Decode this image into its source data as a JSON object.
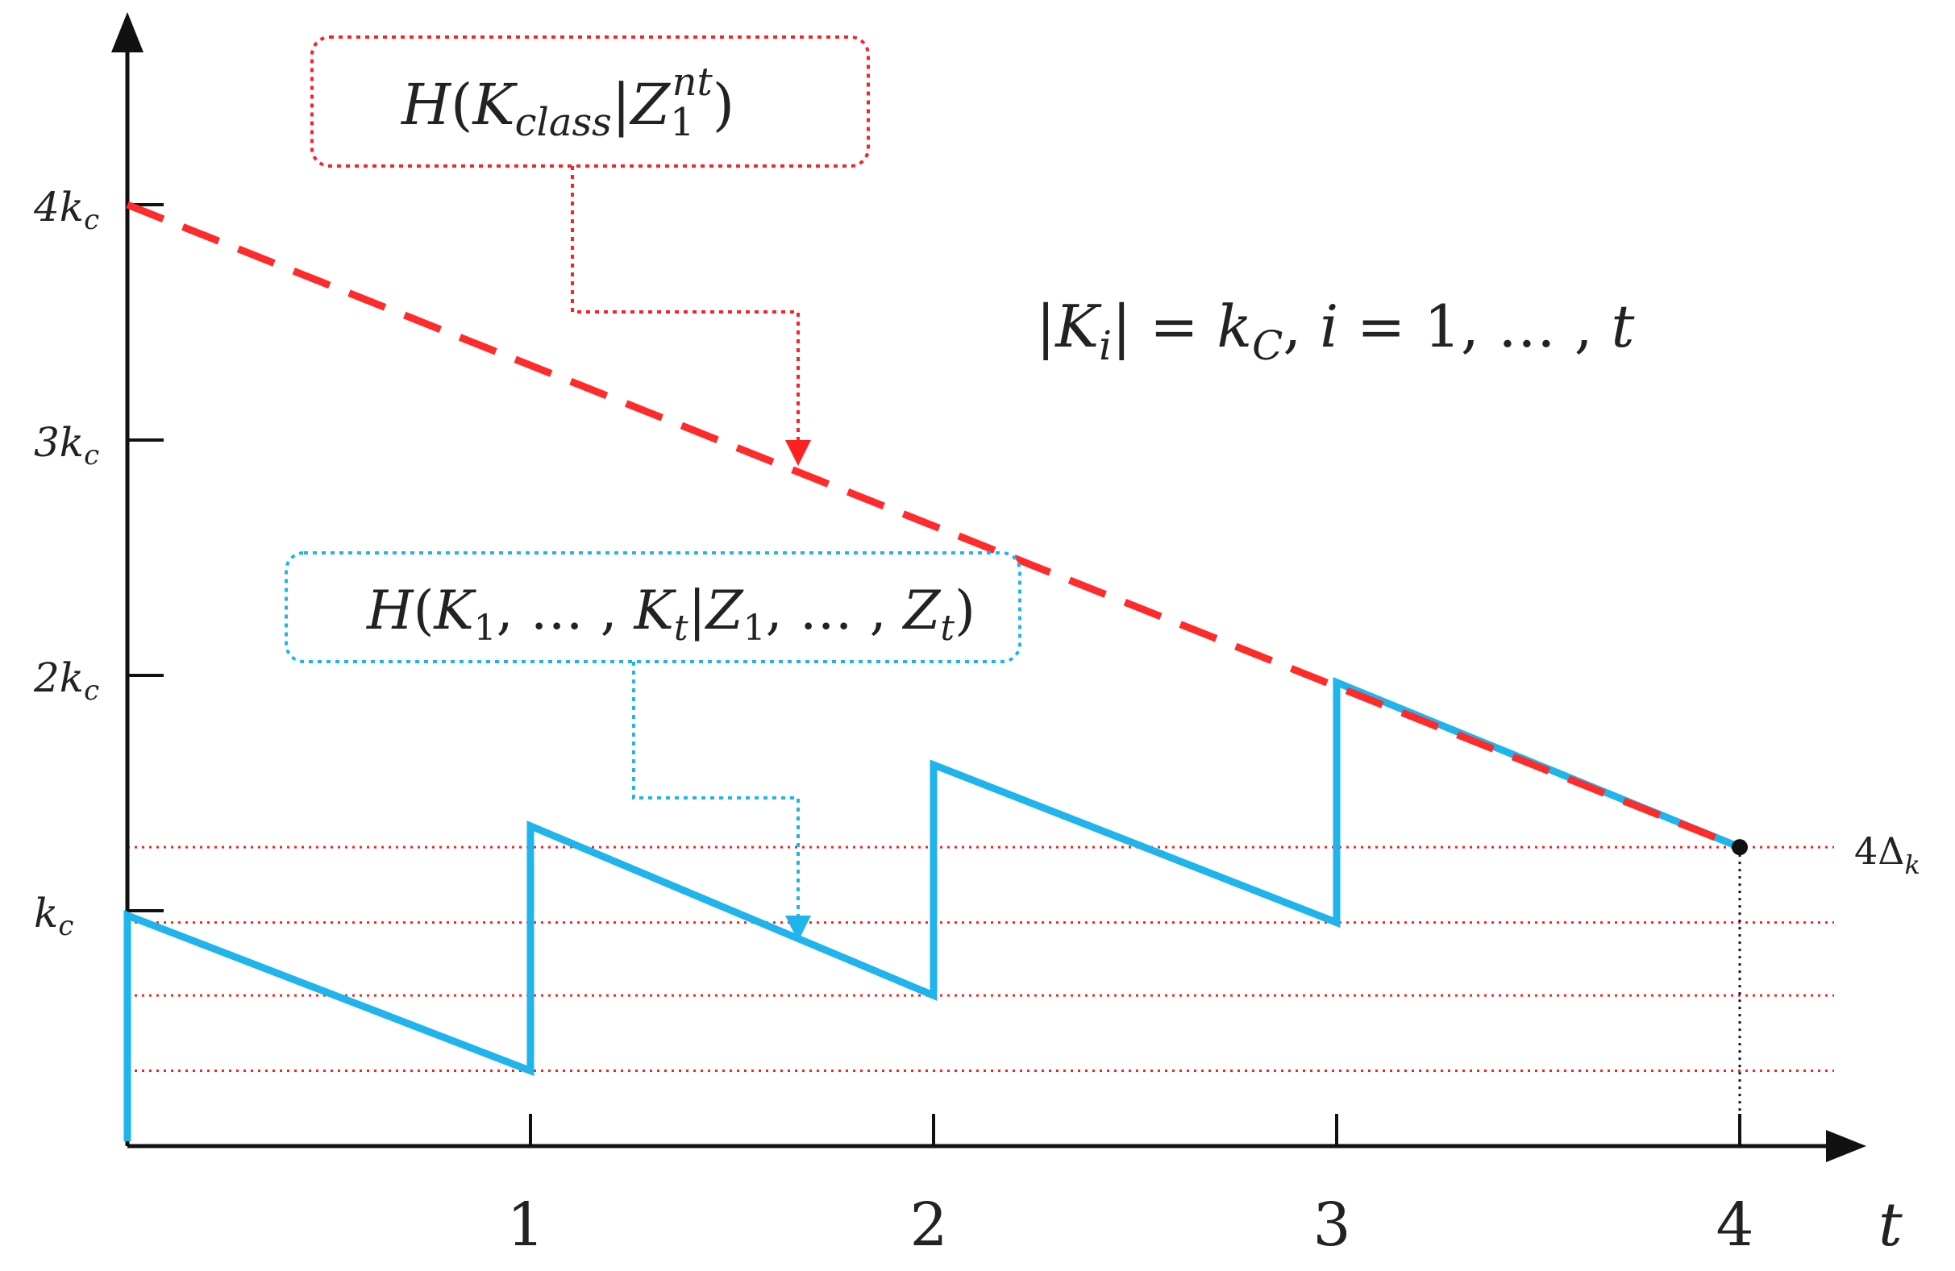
{
  "chart_data": {
    "type": "line",
    "x_ticks": [
      {
        "value": 1,
        "label": "1"
      },
      {
        "value": 2,
        "label": "2"
      },
      {
        "value": 3,
        "label": "3"
      },
      {
        "value": 4,
        "label": "4"
      }
    ],
    "xlabel": "t",
    "y_ticks": [
      {
        "value": 1,
        "label": "k_c"
      },
      {
        "value": 2,
        "label": "2k_c"
      },
      {
        "value": 3,
        "label": "3k_c"
      },
      {
        "value": 4,
        "label": "4k_c"
      }
    ],
    "ylabel": "",
    "xlim": [
      0,
      4.25
    ],
    "ylim": [
      0,
      4.6
    ],
    "grid": false,
    "reference_lines": [
      {
        "y": 1.27,
        "label": "4Δ_k",
        "color": "#ff2020"
      },
      {
        "y": 0.95
      },
      {
        "y": 0.64
      },
      {
        "y": 0.32
      }
    ],
    "series": [
      {
        "name": "H(K_class|Z_1^nt)",
        "style": "dashed",
        "color": "#ff2a2a",
        "points": [
          [
            0,
            4.0
          ],
          [
            4,
            1.27
          ]
        ]
      },
      {
        "name": "H(K_1, … , K_t|Z_1, … , Z_t)",
        "style": "solid",
        "color": "#1fb4ec",
        "points": [
          [
            0,
            0.02
          ],
          [
            0,
            0.98
          ],
          [
            1,
            0.32
          ],
          [
            1,
            1.36
          ],
          [
            2,
            0.64
          ],
          [
            2,
            1.62
          ],
          [
            3,
            0.95
          ],
          [
            3,
            1.97
          ],
          [
            4,
            1.27
          ]
        ]
      }
    ],
    "annotations": [
      {
        "text": "|K_i| = k_C, i = 1, … , t"
      }
    ],
    "marker": {
      "x": 4,
      "y": 1.27
    }
  }
}
